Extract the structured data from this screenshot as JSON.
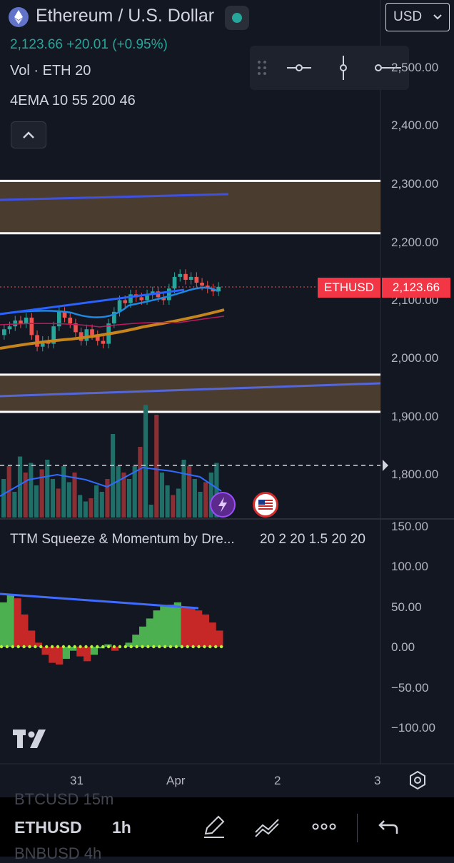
{
  "header": {
    "title": "Ethereum / U.S. Dollar",
    "price": "2,123.66",
    "change": "+20.01",
    "change_pct": "(+0.95%)",
    "volume_label": "Vol · ETH 20",
    "ema_label": "4EMA 10 55 200 46",
    "currency": "USD"
  },
  "price_tag": {
    "symbol": "ETHUSD",
    "value": "2,123.66"
  },
  "price_axis": {
    "labels": [
      "2,500.00",
      "2,400.00",
      "2,300.00",
      "2,200.00",
      "2,100.00",
      "2,000.00",
      "1,900.00",
      "1,800.00"
    ],
    "values": [
      2500,
      2400,
      2300,
      2200,
      2100,
      2000,
      1900,
      1800
    ]
  },
  "indicator": {
    "title": "TTM Squeeze & Momentum by Dre...",
    "params": "20 2 20 1.5 20 20",
    "axis_labels": [
      "150.00",
      "100.00",
      "50.00",
      "0.00",
      "−50.00",
      "−100.00"
    ],
    "axis_values": [
      150,
      100,
      50,
      0,
      -50,
      -100
    ]
  },
  "time_axis": {
    "labels": [
      "31",
      "Apr",
      "2",
      "3"
    ]
  },
  "bottom_bar": {
    "symbol": "ETHUSD",
    "timeframe": "1h",
    "ghost_top": "BTCUSD   15m",
    "ghost_bottom": "BNBUSD   4h"
  },
  "chart_data": {
    "type": "candlestick",
    "current_price": 2123.66,
    "price_range": [
      1780,
      2520
    ],
    "zones": [
      {
        "low": 2215,
        "high": 2305,
        "color": "#4a3d2f"
      },
      {
        "low": 1908,
        "high": 1972,
        "color": "#4a3d2f"
      }
    ],
    "momentum_range": [
      -100,
      150
    ]
  },
  "colors": {
    "background": "#131722",
    "up": "#26a69a",
    "down": "#ef5350",
    "trend_line": "#3f51e0",
    "ema_orange": "#c6841d",
    "zone": "#4a3d2f",
    "momentum_up": "#4caf50",
    "momentum_down": "#c62828",
    "squeeze_dot": "#b5f23a"
  },
  "icons": {
    "toolbar": [
      "drag-handle-icon",
      "horizontal-line-icon",
      "vertical-line-icon",
      "horizontal-ray-icon"
    ],
    "bottom": [
      "pencil-icon",
      "trend-lines-icon",
      "more-icon",
      "undo-icon"
    ]
  }
}
